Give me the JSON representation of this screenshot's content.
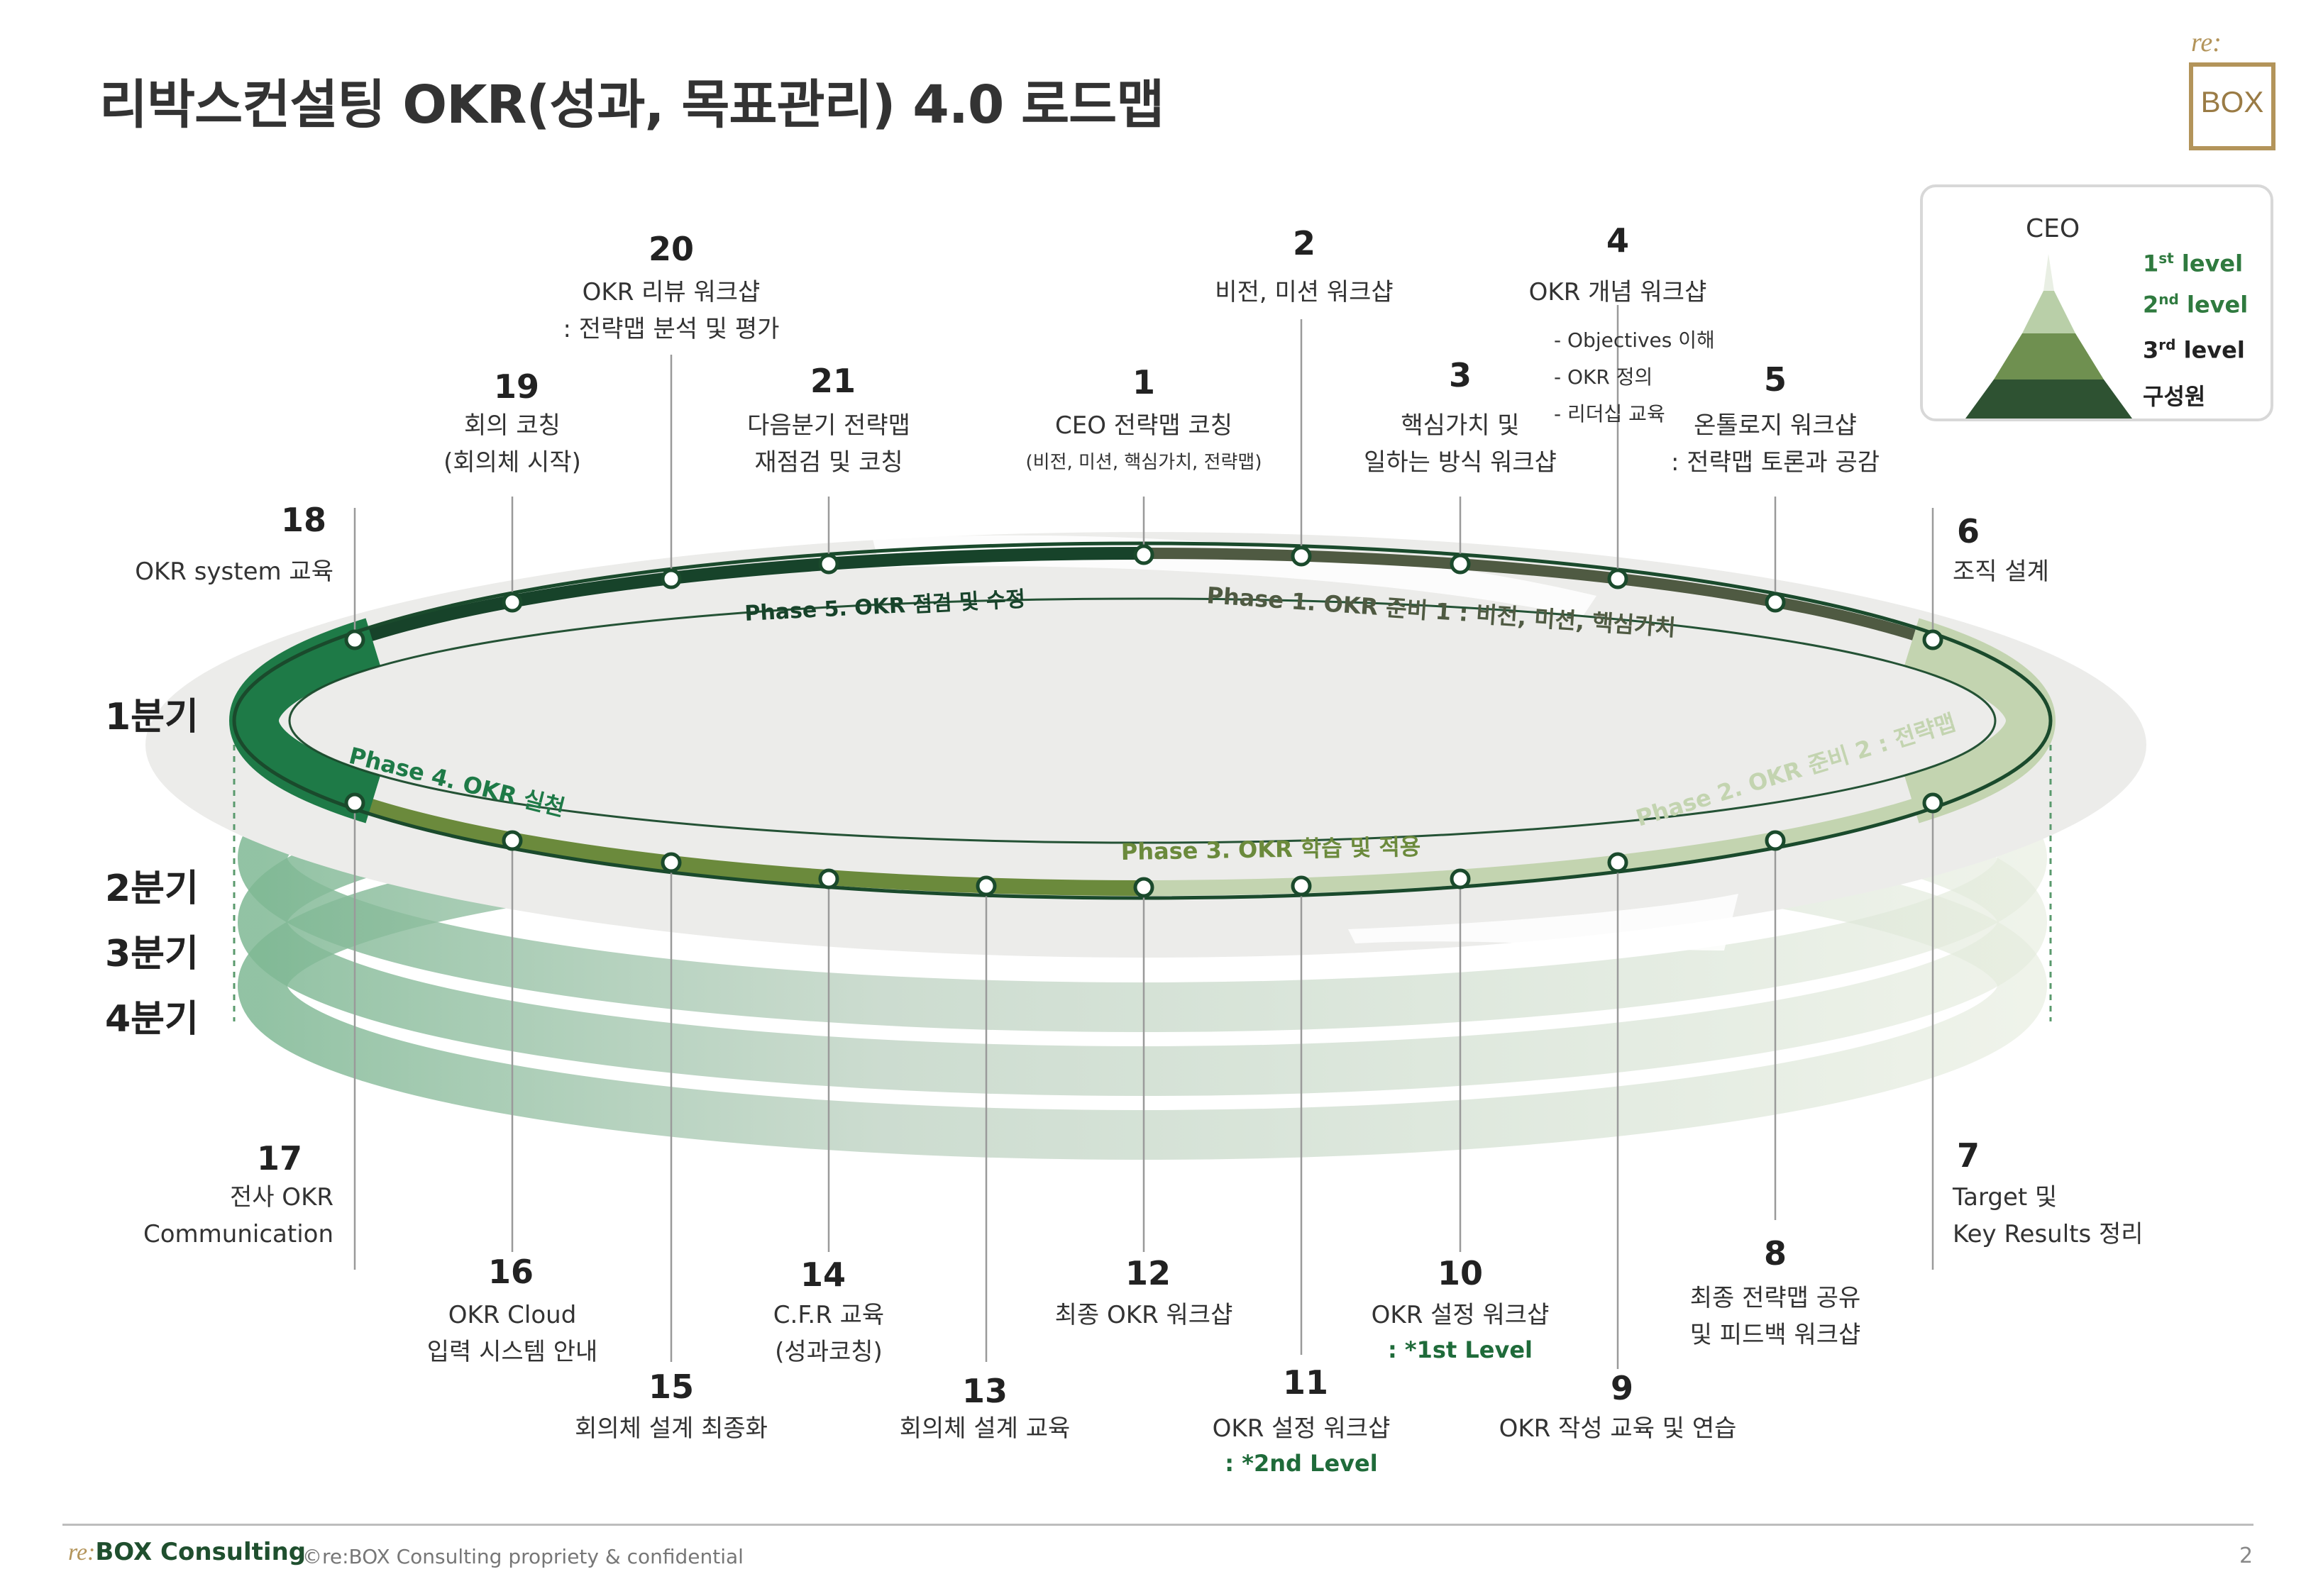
{
  "title": "리박스컨설팅 OKR(성과, 목표관리) 4.0 로드맵",
  "logo": {
    "prefix": "re:",
    "box_text": "BOX"
  },
  "legend": {
    "top": "CEO",
    "levels": [
      {
        "base": "1",
        "sup": "st",
        "rest": " level",
        "color": "#2f7a3f"
      },
      {
        "base": "2",
        "sup": "nd",
        "rest": " level",
        "color": "#2f7a3f"
      },
      {
        "base": "3",
        "sup": "rd",
        "rest": " level",
        "color": "#222222"
      },
      {
        "base": "구성원",
        "sup": "",
        "rest": "",
        "color": "#222222"
      }
    ],
    "pyramid_colors": [
      "#e9efe4",
      "#b9cfa8",
      "#6f9050",
      "#2e5232"
    ]
  },
  "quarters": [
    "1분기",
    "2분기",
    "3분기",
    "4분기"
  ],
  "phases": [
    "Phase 1. OKR 준비 1 : 비전, 미션, 핵심가치",
    "Phase 2. OKR 준비 2 : 전략맵",
    "Phase 3. OKR 학습 및 적용",
    "Phase 4. OKR 실천",
    "Phase 5. OKR 점검 및 수정"
  ],
  "phase_colors": {
    "phase1": "#4f5a42",
    "phase2": "#c3d4b0",
    "phase3": "#6b8a3c",
    "phase4": "#1e7a47",
    "phase5": "#17432a"
  },
  "steps": [
    {
      "n": "1",
      "lines": [
        "CEO 전략맵 코칭"
      ],
      "small": "(비전, 미션, 핵심가치, 전략맵)"
    },
    {
      "n": "2",
      "lines": [
        "비전, 미션 워크샵"
      ]
    },
    {
      "n": "3",
      "lines": [
        "핵심가치 및",
        "일하는 방식 워크샵"
      ]
    },
    {
      "n": "4",
      "lines": [
        "OKR 개념 워크샵"
      ],
      "items": [
        "- Objectives 이해",
        "- OKR 정의",
        "- 리더십 교육"
      ]
    },
    {
      "n": "5",
      "lines": [
        "온톨로지 워크샵",
        ": 전략맵 토론과 공감"
      ]
    },
    {
      "n": "6",
      "lines": [
        "조직 설계"
      ]
    },
    {
      "n": "7",
      "lines": [
        "Target 및",
        "Key Results 정리"
      ]
    },
    {
      "n": "8",
      "lines": [
        "최종 전략맵 공유",
        "및 피드백 워크샵"
      ]
    },
    {
      "n": "9",
      "lines": [
        "OKR 작성 교육 및 연습"
      ]
    },
    {
      "n": "10",
      "lines": [
        "OKR 설정 워크샵"
      ],
      "level": ": *1st Level"
    },
    {
      "n": "11",
      "lines": [
        "OKR 설정 워크샵"
      ],
      "level": ": *2nd Level"
    },
    {
      "n": "12",
      "lines": [
        "최종 OKR 워크샵"
      ]
    },
    {
      "n": "13",
      "lines": [
        "회의체 설계 교육"
      ]
    },
    {
      "n": "14",
      "lines": [
        "C.F.R 교육",
        "(성과코칭)"
      ]
    },
    {
      "n": "15",
      "lines": [
        "회의체 설계 최종화"
      ]
    },
    {
      "n": "16",
      "lines": [
        "OKR Cloud",
        "입력 시스템 안내"
      ]
    },
    {
      "n": "17",
      "lines": [
        "전사 OKR",
        "Communication"
      ]
    },
    {
      "n": "18",
      "lines": [
        "OKR system 교육"
      ]
    },
    {
      "n": "19",
      "lines": [
        "회의 코칭",
        "(회의체 시작)"
      ]
    },
    {
      "n": "20",
      "lines": [
        "OKR 리뷰 워크샵",
        ": 전략맵 분석 및 평가"
      ]
    },
    {
      "n": "21",
      "lines": [
        "다음분기 전략맵",
        "재점검 및 코칭"
      ]
    }
  ],
  "footer": {
    "brand_prefix": "re:",
    "brand": "BOX Consulting",
    "copyright": "©re:BOX Consulting propriety & confidential",
    "page": "2"
  }
}
